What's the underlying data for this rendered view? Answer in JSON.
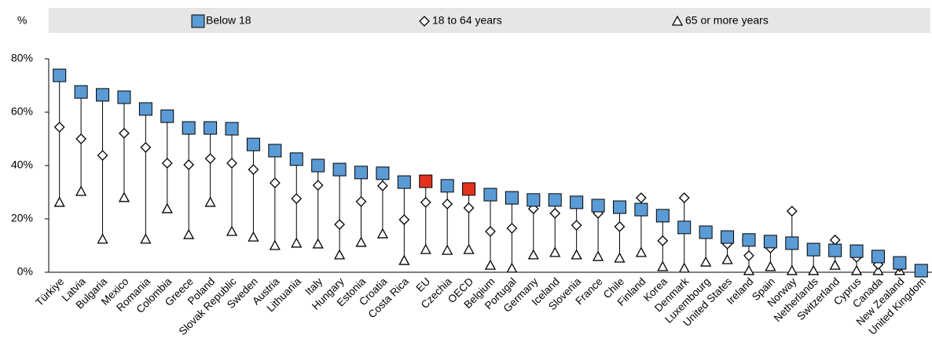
{
  "chart_data": {
    "type": "dot",
    "y_unit": "%",
    "categories": [
      "Türkiye",
      "Latvia",
      "Bulgaria",
      "Mexico",
      "Romania",
      "Colombia",
      "Greece",
      "Poland",
      "Slovak Republic",
      "Sweden",
      "Austria",
      "Lithuania",
      "Italy",
      "Hungary",
      "Estonia",
      "Croatia",
      "Costa Rica",
      "EU",
      "Czechia",
      "OECD",
      "Belgium",
      "Portugal",
      "Germany",
      "Iceland",
      "Slovenia",
      "France",
      "Chile",
      "Finland",
      "Korea",
      "Denmark",
      "Luxembourg",
      "United States",
      "Ireland",
      "Spain",
      "Norway",
      "Netherlands",
      "Switzerland",
      "Cyprus",
      "Canada",
      "New Zealand",
      "United Kingdom"
    ],
    "series": [
      {
        "name": "Below 18",
        "marker": "square",
        "color": "#5b9bd5",
        "point_colors": [
          "#5b9bd5",
          "#5b9bd5",
          "#5b9bd5",
          "#5b9bd5",
          "#5b9bd5",
          "#5b9bd5",
          "#5b9bd5",
          "#5b9bd5",
          "#5b9bd5",
          "#5b9bd5",
          "#5b9bd5",
          "#5b9bd5",
          "#5b9bd5",
          "#5b9bd5",
          "#5b9bd5",
          "#5b9bd5",
          "#5b9bd5",
          "#e2311d",
          "#5b9bd5",
          "#e2311d",
          "#5b9bd5",
          "#5b9bd5",
          "#5b9bd5",
          "#5b9bd5",
          "#5b9bd5",
          "#5b9bd5",
          "#5b9bd5",
          "#5b9bd5",
          "#5b9bd5",
          "#5b9bd5",
          "#5b9bd5",
          "#5b9bd5",
          "#5b9bd5",
          "#5b9bd5",
          "#5b9bd5",
          "#5b9bd5",
          "#5b9bd5",
          "#5b9bd5",
          "#5b9bd5",
          "#5b9bd5",
          "#5b9bd5"
        ],
        "values": [
          73.8,
          67.6,
          66.5,
          65.6,
          61.2,
          58.5,
          54.1,
          54.1,
          53.8,
          47.9,
          45.6,
          42.4,
          40,
          38.5,
          37.4,
          37.1,
          33.8,
          34.1,
          32.4,
          31.2,
          29.1,
          27.9,
          27.1,
          27.1,
          26.2,
          25,
          24.4,
          23.5,
          21.2,
          16.8,
          15,
          13.2,
          12.1,
          11.5,
          10.9,
          8.5,
          8.2,
          7.9,
          5.9,
          3.5,
          0.6
        ]
      },
      {
        "name": "18 to 64 years",
        "marker": "diamond",
        "color": "#ffffff",
        "values": [
          54.4,
          50,
          43.8,
          52.1,
          46.8,
          40.9,
          40.3,
          42.6,
          40.9,
          38.5,
          33.5,
          27.6,
          32.6,
          17.9,
          26.5,
          32.4,
          19.7,
          26.2,
          25.6,
          24.1,
          15.3,
          16.5,
          23.8,
          22.1,
          17.6,
          22.1,
          17.1,
          27.9,
          11.8,
          27.9,
          15,
          10.6,
          6.2,
          9.1,
          22.9,
          9.1,
          12.1,
          5.6,
          2.9,
          2.1,
          0.6
        ]
      },
      {
        "name": "65 or more years",
        "marker": "triangle",
        "color": "#ffffff",
        "values": [
          26.2,
          30.3,
          12.4,
          28,
          12.4,
          23.8,
          14.1,
          26.2,
          15.3,
          13.2,
          10,
          10.9,
          10.6,
          6.5,
          11.2,
          14.4,
          4.4,
          8.5,
          8.2,
          8.5,
          2.6,
          1.5,
          6.5,
          7.4,
          6.5,
          5.9,
          5.3,
          7.4,
          2.1,
          1.5,
          3.8,
          4.7,
          0.6,
          2.1,
          0.6,
          0.6,
          2.6,
          0.6,
          0.6,
          0.6,
          0.6
        ]
      }
    ],
    "ylim": [
      0,
      80
    ],
    "yticks": [
      {
        "value": 0,
        "label": "0%"
      },
      {
        "value": 20,
        "label": "20%"
      },
      {
        "value": 40,
        "label": "40%"
      },
      {
        "value": 60,
        "label": "60%"
      },
      {
        "value": 80,
        "label": "80%"
      }
    ],
    "grid": false
  }
}
